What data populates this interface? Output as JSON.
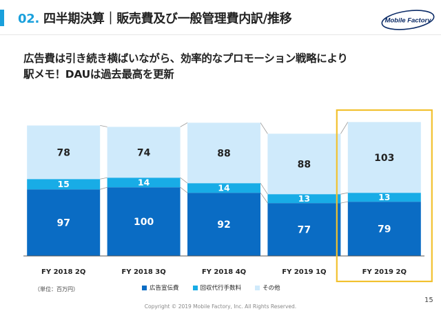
{
  "header": {
    "section_number": "02.",
    "title": "四半期決算｜販売費及び一般管理費内訳/推移",
    "logo_text": "Mobile Factory"
  },
  "headline": {
    "line1": "広告費は引き続き横ばいながら、効率的なプロモーション戦略により",
    "line2": "駅メモ！DAUは過去最高を更新"
  },
  "chart_data": {
    "type": "bar",
    "stacked": true,
    "categories": [
      "FY 2018 2Q",
      "FY 2018 3Q",
      "FY 2018 4Q",
      "FY 2019 1Q",
      "FY 2019 2Q"
    ],
    "series": [
      {
        "name": "広告宣伝費",
        "values": [
          97,
          100,
          92,
          77,
          79
        ],
        "color": "#0a6cc4"
      },
      {
        "name": "回収代行手数料",
        "values": [
          15,
          14,
          14,
          13,
          13
        ],
        "color": "#18ace6"
      },
      {
        "name": "その他",
        "values": [
          78,
          74,
          88,
          88,
          103
        ],
        "color": "#cfeafb"
      }
    ],
    "unit_note": "（単位：百万円）",
    "highlight_category": "FY 2019 2Q",
    "highlight_color": "#f2c12e",
    "legend_position": "bottom",
    "ylim": [
      0,
      195
    ],
    "grid": false
  },
  "footer": {
    "copyright": "Copyright © 2019 Mobile Factory, Inc. All Rights Reserved.",
    "page_number": "15"
  }
}
